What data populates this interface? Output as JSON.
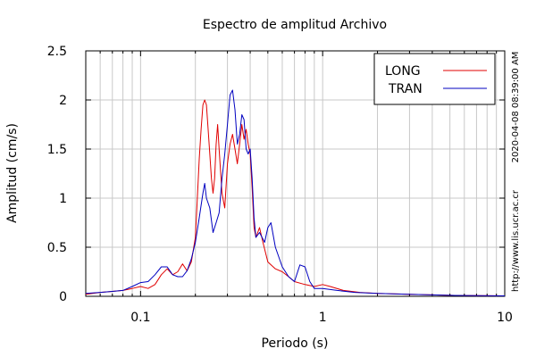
{
  "chart_data": {
    "type": "line",
    "title": "Espectro de amplitud Archivo",
    "xlabel": "Periodo (s)",
    "ylabel": "Amplitud (cm/s)",
    "xscale": "log",
    "xlim": [
      0.05,
      10
    ],
    "ylim": [
      0,
      2.5
    ],
    "grid": true,
    "legend_position": "top-right",
    "x_ticks": [
      {
        "value": 0.1,
        "label": "0.1"
      },
      {
        "value": 1,
        "label": "1"
      },
      {
        "value": 10,
        "label": "10"
      }
    ],
    "y_ticks": [
      {
        "value": 0,
        "label": "0"
      },
      {
        "value": 0.5,
        "label": "0.5"
      },
      {
        "value": 1,
        "label": "1"
      },
      {
        "value": 1.5,
        "label": "1.5"
      },
      {
        "value": 2,
        "label": "2"
      },
      {
        "value": 2.5,
        "label": "2.5"
      }
    ],
    "series": [
      {
        "name": "LONG",
        "color": "#e00000",
        "points": [
          [
            0.05,
            0.02
          ],
          [
            0.06,
            0.04
          ],
          [
            0.07,
            0.05
          ],
          [
            0.08,
            0.06
          ],
          [
            0.09,
            0.08
          ],
          [
            0.1,
            0.1
          ],
          [
            0.11,
            0.08
          ],
          [
            0.12,
            0.12
          ],
          [
            0.13,
            0.22
          ],
          [
            0.14,
            0.28
          ],
          [
            0.15,
            0.22
          ],
          [
            0.16,
            0.25
          ],
          [
            0.17,
            0.33
          ],
          [
            0.18,
            0.26
          ],
          [
            0.19,
            0.35
          ],
          [
            0.2,
            0.6
          ],
          [
            0.205,
            1.0
          ],
          [
            0.21,
            1.4
          ],
          [
            0.215,
            1.7
          ],
          [
            0.22,
            1.95
          ],
          [
            0.225,
            2.0
          ],
          [
            0.23,
            1.95
          ],
          [
            0.235,
            1.7
          ],
          [
            0.24,
            1.45
          ],
          [
            0.245,
            1.2
          ],
          [
            0.25,
            1.05
          ],
          [
            0.255,
            1.2
          ],
          [
            0.26,
            1.55
          ],
          [
            0.265,
            1.75
          ],
          [
            0.27,
            1.5
          ],
          [
            0.28,
            1.05
          ],
          [
            0.29,
            0.9
          ],
          [
            0.3,
            1.35
          ],
          [
            0.31,
            1.55
          ],
          [
            0.32,
            1.65
          ],
          [
            0.33,
            1.5
          ],
          [
            0.34,
            1.35
          ],
          [
            0.35,
            1.55
          ],
          [
            0.36,
            1.75
          ],
          [
            0.37,
            1.6
          ],
          [
            0.38,
            1.7
          ],
          [
            0.39,
            1.55
          ],
          [
            0.4,
            1.45
          ],
          [
            0.41,
            1.1
          ],
          [
            0.42,
            0.7
          ],
          [
            0.43,
            0.6
          ],
          [
            0.45,
            0.7
          ],
          [
            0.47,
            0.55
          ],
          [
            0.5,
            0.35
          ],
          [
            0.55,
            0.28
          ],
          [
            0.6,
            0.25
          ],
          [
            0.65,
            0.2
          ],
          [
            0.7,
            0.15
          ],
          [
            0.8,
            0.12
          ],
          [
            0.9,
            0.1
          ],
          [
            1.0,
            0.12
          ],
          [
            1.1,
            0.1
          ],
          [
            1.3,
            0.06
          ],
          [
            1.6,
            0.04
          ],
          [
            2.0,
            0.03
          ],
          [
            3.0,
            0.02
          ],
          [
            5.0,
            0.01
          ],
          [
            10.0,
            0.005
          ]
        ]
      },
      {
        "name": "TRAN",
        "color": "#0000c0",
        "points": [
          [
            0.05,
            0.03
          ],
          [
            0.06,
            0.04
          ],
          [
            0.07,
            0.05
          ],
          [
            0.08,
            0.06
          ],
          [
            0.09,
            0.1
          ],
          [
            0.1,
            0.14
          ],
          [
            0.11,
            0.15
          ],
          [
            0.12,
            0.22
          ],
          [
            0.13,
            0.3
          ],
          [
            0.14,
            0.3
          ],
          [
            0.15,
            0.22
          ],
          [
            0.16,
            0.2
          ],
          [
            0.17,
            0.2
          ],
          [
            0.18,
            0.26
          ],
          [
            0.19,
            0.38
          ],
          [
            0.2,
            0.55
          ],
          [
            0.21,
            0.8
          ],
          [
            0.22,
            1.05
          ],
          [
            0.225,
            1.15
          ],
          [
            0.23,
            1.0
          ],
          [
            0.24,
            0.9
          ],
          [
            0.25,
            0.65
          ],
          [
            0.26,
            0.75
          ],
          [
            0.27,
            0.85
          ],
          [
            0.28,
            1.2
          ],
          [
            0.29,
            1.45
          ],
          [
            0.3,
            1.75
          ],
          [
            0.31,
            2.05
          ],
          [
            0.32,
            2.1
          ],
          [
            0.33,
            1.9
          ],
          [
            0.34,
            1.55
          ],
          [
            0.35,
            1.65
          ],
          [
            0.36,
            1.85
          ],
          [
            0.37,
            1.8
          ],
          [
            0.38,
            1.5
          ],
          [
            0.39,
            1.45
          ],
          [
            0.4,
            1.5
          ],
          [
            0.41,
            1.2
          ],
          [
            0.42,
            0.8
          ],
          [
            0.43,
            0.6
          ],
          [
            0.45,
            0.65
          ],
          [
            0.48,
            0.55
          ],
          [
            0.5,
            0.7
          ],
          [
            0.52,
            0.75
          ],
          [
            0.55,
            0.5
          ],
          [
            0.6,
            0.3
          ],
          [
            0.65,
            0.2
          ],
          [
            0.7,
            0.15
          ],
          [
            0.75,
            0.32
          ],
          [
            0.8,
            0.3
          ],
          [
            0.85,
            0.15
          ],
          [
            0.9,
            0.08
          ],
          [
            1.0,
            0.08
          ],
          [
            1.2,
            0.06
          ],
          [
            1.5,
            0.04
          ],
          [
            2.0,
            0.03
          ],
          [
            3.0,
            0.02
          ],
          [
            5.0,
            0.01
          ],
          [
            10.0,
            0.005
          ]
        ]
      }
    ],
    "side_labels": {
      "timestamp": "2020-04-08 08:39:00 AM",
      "url": "http://www.lis.ucr.ac.cr"
    }
  }
}
